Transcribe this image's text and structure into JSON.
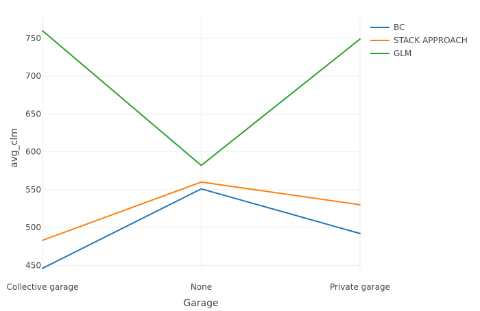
{
  "chart_data": {
    "type": "line",
    "title": "",
    "xlabel": "Garage",
    "ylabel": "avg_clm",
    "categories": [
      "Collective garage",
      "None",
      "Private garage"
    ],
    "ylim": [
      443,
      778
    ],
    "yticks": [
      450,
      500,
      550,
      600,
      650,
      700,
      750
    ],
    "grid": true,
    "legend_position": "top-right",
    "series": [
      {
        "name": "BC",
        "color": "#1f77b4",
        "values": [
          446,
          551,
          492
        ]
      },
      {
        "name": "STACK APPROACH",
        "color": "#ff7f0e",
        "values": [
          483,
          560,
          530
        ]
      },
      {
        "name": "GLM",
        "color": "#2ca02c",
        "values": [
          760,
          582,
          749
        ]
      }
    ]
  }
}
